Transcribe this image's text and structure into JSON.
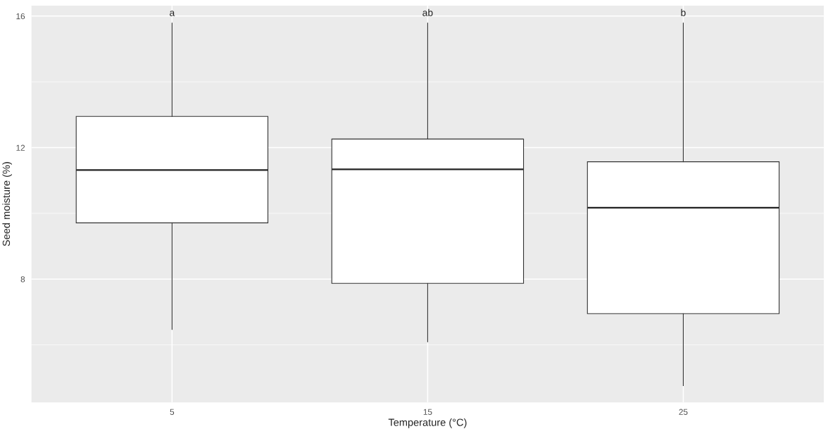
{
  "chart_data": {
    "type": "box",
    "xlabel": "Temperature (°C)",
    "ylabel": "Seed moisture (%)",
    "categories": [
      "5",
      "15",
      "25"
    ],
    "boxes": [
      {
        "low": 6.47,
        "q1": 9.71,
        "median": 11.32,
        "q3": 12.95,
        "high": 15.79
      },
      {
        "low": 6.09,
        "q1": 7.87,
        "median": 11.34,
        "q3": 12.26,
        "high": 15.79
      },
      {
        "low": 4.76,
        "q1": 6.95,
        "median": 10.17,
        "q3": 11.57,
        "high": 15.79
      }
    ],
    "ylim": [
      4.25,
      16.32
    ],
    "yticks": [
      8,
      12,
      16
    ],
    "grid": true,
    "annotations": [
      "a",
      "ab",
      "b"
    ]
  }
}
